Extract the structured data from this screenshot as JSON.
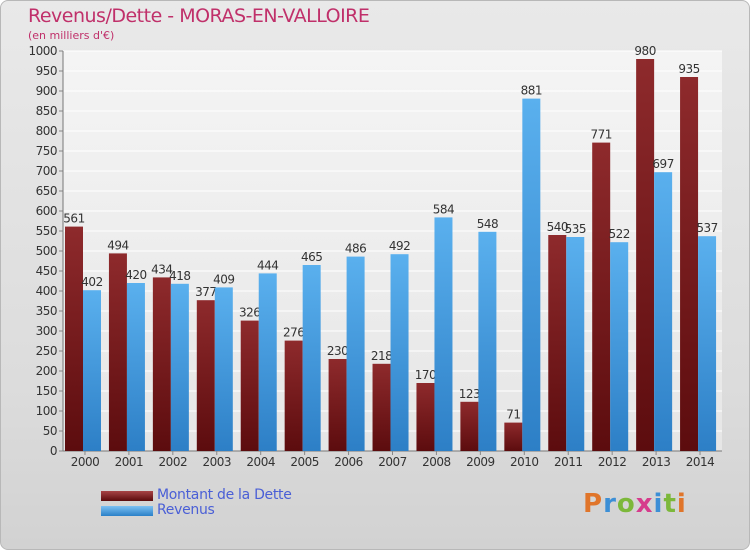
{
  "chart_data": {
    "type": "bar",
    "title": "Revenus/Dette - MORAS-EN-VALLOIRE",
    "subtitle": "(en milliers d'€)",
    "categories": [
      "2000",
      "2001",
      "2002",
      "2003",
      "2004",
      "2005",
      "2006",
      "2007",
      "2008",
      "2009",
      "2010",
      "2011",
      "2012",
      "2013",
      "2014"
    ],
    "series": [
      {
        "name": "Montant de la Dette",
        "color": "#7a1a1c",
        "values": [
          561,
          494,
          434,
          377,
          326,
          276,
          230,
          218,
          170,
          123,
          71,
          540,
          771,
          980,
          935
        ]
      },
      {
        "name": "Revenus",
        "color": "#4aa3e6",
        "values": [
          402,
          420,
          418,
          409,
          444,
          465,
          486,
          492,
          584,
          548,
          881,
          535,
          522,
          697,
          537
        ]
      }
    ],
    "ylim": [
      0,
      1000
    ],
    "yticks": [
      0,
      50,
      100,
      150,
      200,
      250,
      300,
      350,
      400,
      450,
      500,
      550,
      600,
      650,
      700,
      750,
      800,
      850,
      900,
      950,
      1000
    ],
    "grid": true,
    "legend_position": "bottom-left"
  },
  "logo_text": "Proxiti"
}
